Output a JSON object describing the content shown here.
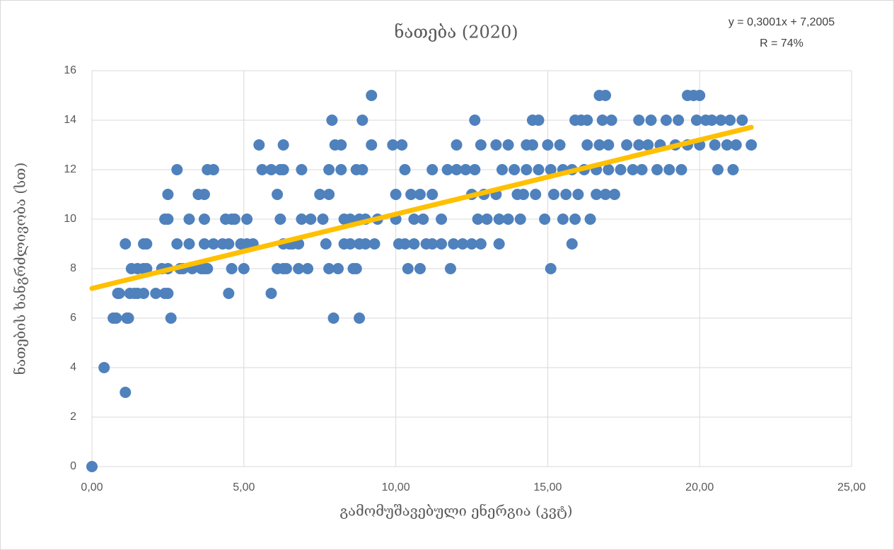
{
  "chart_data": {
    "type": "scatter",
    "title": "ნათება (2020)",
    "annotations": [
      "y = 0,3001x + 7,2005",
      "R = 74%"
    ],
    "xlabel": "გამომუშავებული ენერგია (კვტ)",
    "ylabel": "ნათების ხანგრძლივობა (სთ)",
    "xlim": [
      0,
      25
    ],
    "xticks": [
      {
        "value": 0,
        "label": "0,00"
      },
      {
        "value": 5,
        "label": "5,00"
      },
      {
        "value": 10,
        "label": "10,00"
      },
      {
        "value": 15,
        "label": "15,00"
      },
      {
        "value": 20,
        "label": "20,00"
      },
      {
        "value": 25,
        "label": "25,00"
      }
    ],
    "ylim": [
      0,
      16
    ],
    "yticks": [
      0,
      2,
      4,
      6,
      8,
      10,
      12,
      14,
      16
    ],
    "grid": true,
    "color": "#4f81bd",
    "trendline": {
      "color": "#ffc000",
      "slope": 0.3001,
      "intercept": 7.2005,
      "x": [
        0,
        21.7
      ]
    },
    "x": [
      0,
      0.4,
      1.1,
      0.7,
      0.8,
      1.15,
      1.2,
      0.85,
      0.9,
      1.25,
      1.4,
      1.5,
      1.7,
      1.1,
      1.3,
      1.5,
      1.7,
      1.8,
      1.7,
      1.8,
      2.1,
      2.4,
      2.5,
      2.3,
      2.5,
      2.4,
      2.5,
      2.5,
      2.6,
      2.8,
      2.8,
      2.9,
      3.0,
      3.2,
      3.2,
      3.3,
      3.5,
      3.6,
      3.7,
      3.7,
      3.7,
      3.7,
      3.8,
      3.8,
      4.0,
      4.0,
      4.3,
      4.4,
      4.5,
      4.5,
      4.6,
      4.6,
      4.7,
      4.9,
      5.0,
      5.1,
      5.1,
      5.3,
      5.5,
      5.6,
      5.9,
      5.9,
      6.1,
      6.1,
      6.2,
      6.2,
      6.3,
      6.3,
      6.3,
      6.3,
      6.4,
      6.5,
      6.6,
      6.8,
      6.8,
      6.9,
      6.9,
      7.1,
      7.2,
      7.5,
      7.6,
      7.7,
      7.8,
      7.8,
      7.8,
      7.9,
      7.95,
      8.0,
      8.1,
      8.2,
      8.2,
      8.3,
      8.3,
      8.5,
      8.5,
      8.6,
      8.7,
      8.7,
      8.8,
      8.8,
      8.8,
      8.9,
      8.9,
      9.0,
      9.0,
      9.2,
      9.2,
      9.3,
      9.4,
      9.9,
      10.0,
      10.0,
      10.1,
      10.2,
      10.3,
      10.3,
      10.4,
      10.5,
      10.6,
      10.6,
      10.8,
      10.8,
      10.9,
      11.0,
      11.2,
      11.2,
      11.2,
      11.5,
      11.5,
      11.7,
      11.8,
      11.9,
      12.0,
      12.0,
      12.2,
      12.3,
      12.5,
      12.5,
      12.6,
      12.6,
      12.7,
      12.8,
      12.8,
      12.9,
      13.0,
      13.3,
      13.3,
      13.4,
      13.4,
      13.5,
      13.7,
      13.7,
      13.9,
      14.0,
      14.1,
      14.2,
      14.3,
      14.3,
      14.5,
      14.5,
      14.6,
      14.7,
      14.7,
      14.9,
      15.0,
      15.1,
      15.1,
      15.2,
      15.4,
      15.5,
      15.5,
      15.6,
      15.8,
      15.8,
      15.9,
      15.9,
      16.0,
      16.1,
      16.2,
      16.3,
      16.3,
      16.4,
      16.6,
      16.6,
      16.7,
      16.7,
      16.8,
      16.9,
      16.9,
      17.0,
      17.0,
      17.1,
      17.2,
      17.4,
      17.6,
      17.8,
      18.0,
      18.0,
      18.1,
      18.3,
      18.4,
      18.6,
      18.7,
      18.9,
      19.0,
      19.2,
      19.3,
      19.4,
      19.6,
      19.6,
      19.8,
      19.9,
      20.0,
      20.0,
      20.2,
      20.4,
      20.5,
      20.6,
      20.7,
      20.9,
      21.0,
      21.1,
      21.2,
      21.4,
      21.7
    ],
    "values": [
      0,
      4,
      3,
      6,
      6,
      6,
      6,
      7,
      7,
      7,
      7,
      7,
      7,
      9,
      8,
      8,
      8,
      8,
      9,
      9,
      7,
      7,
      7,
      8,
      8,
      10,
      10,
      11,
      6,
      9,
      12,
      8,
      8,
      9,
      10,
      8,
      11,
      8,
      8,
      9,
      10,
      11,
      12,
      8,
      12,
      9,
      9,
      10,
      7,
      9,
      8,
      10,
      10,
      9,
      8,
      9,
      10,
      9,
      13,
      12,
      12,
      7,
      11,
      8,
      12,
      10,
      13,
      12,
      9,
      8,
      8,
      9,
      9,
      8,
      9,
      12,
      10,
      8,
      10,
      11,
      10,
      9,
      12,
      11,
      8,
      14,
      6,
      13,
      8,
      13,
      12,
      10,
      9,
      10,
      9,
      8,
      12,
      8,
      10,
      9,
      6,
      14,
      12,
      10,
      9,
      15,
      13,
      9,
      10,
      13,
      11,
      10,
      9,
      13,
      12,
      9,
      8,
      11,
      10,
      9,
      11,
      8,
      10,
      9,
      11,
      12,
      9,
      9,
      10,
      12,
      8,
      9,
      12,
      13,
      9,
      12,
      11,
      9,
      12,
      14,
      10,
      13,
      9,
      11,
      10,
      13,
      11,
      10,
      9,
      12,
      13,
      10,
      12,
      11,
      10,
      11,
      13,
      12,
      14,
      13,
      11,
      14,
      12,
      10,
      13,
      12,
      8,
      11,
      13,
      12,
      10,
      11,
      12,
      9,
      10,
      14,
      11,
      14,
      12,
      13,
      14,
      10,
      12,
      11,
      15,
      13,
      14,
      11,
      15,
      12,
      13,
      14,
      11,
      12,
      13,
      12,
      14,
      13,
      12,
      13,
      14,
      12,
      13,
      14,
      12,
      13,
      14,
      12,
      15,
      13,
      15,
      14,
      13,
      15,
      14,
      14,
      13,
      12,
      14,
      13,
      14,
      12,
      13,
      14,
      13
    ]
  }
}
